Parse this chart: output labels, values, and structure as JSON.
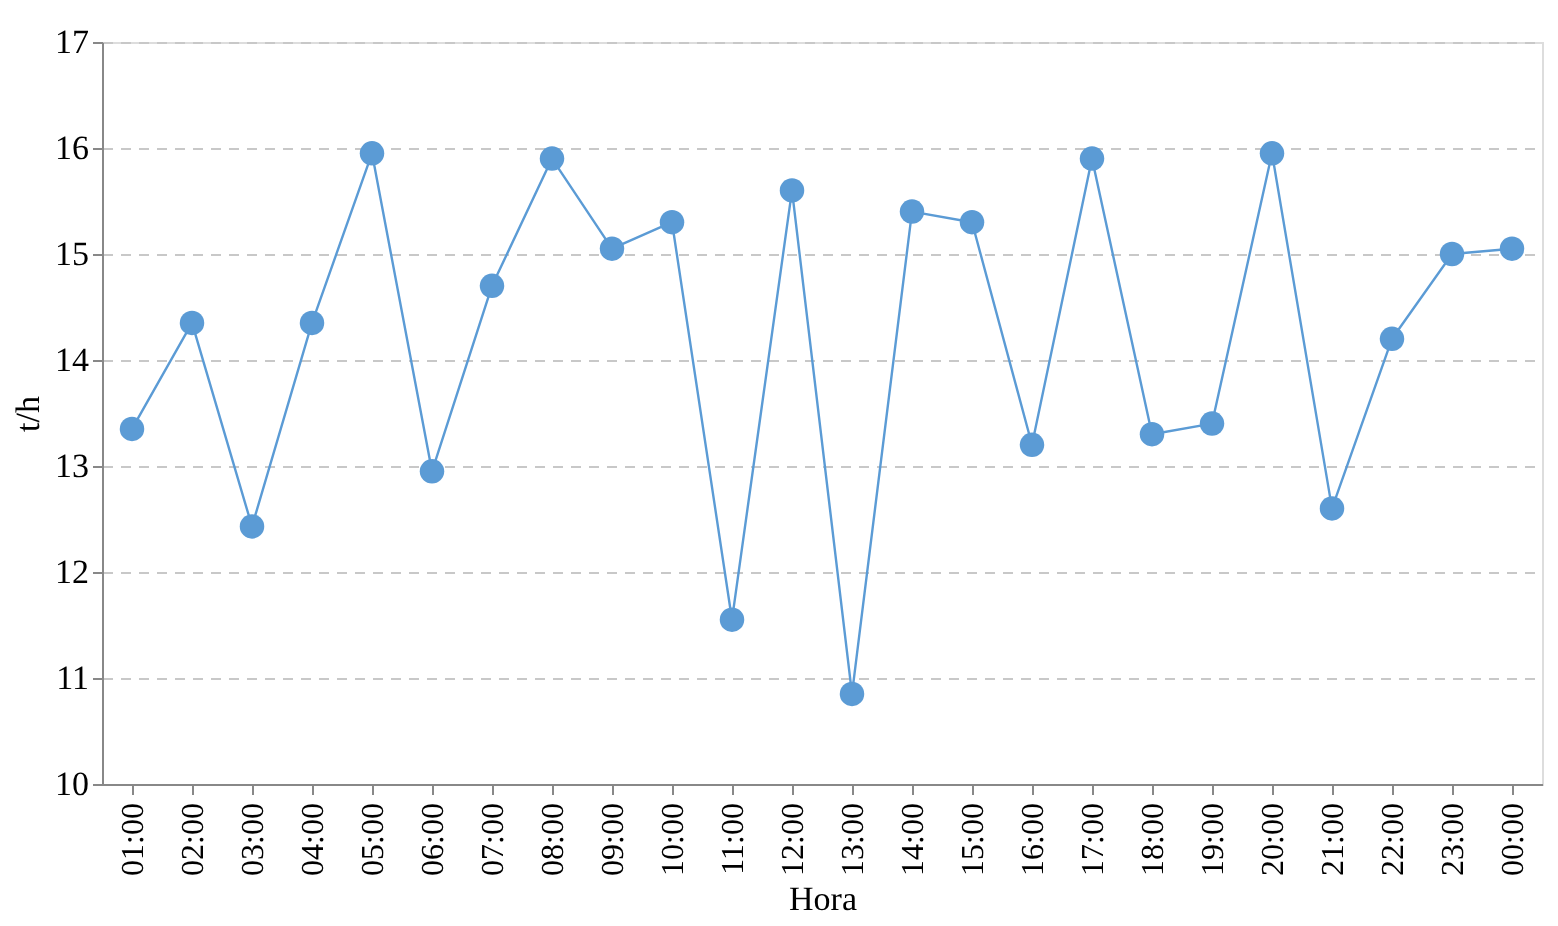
{
  "chart_data": {
    "type": "line",
    "xlabel": "Hora",
    "ylabel": "t/h",
    "categories": [
      "01:00",
      "02:00",
      "03:00",
      "04:00",
      "05:00",
      "06:00",
      "07:00",
      "08:00",
      "09:00",
      "10:00",
      "11:00",
      "12:00",
      "13:00",
      "14:00",
      "15:00",
      "16:00",
      "17:00",
      "18:00",
      "19:00",
      "20:00",
      "21:00",
      "22:00",
      "23:00",
      "00:00"
    ],
    "series": [
      {
        "color": "#5b9bd5",
        "values": [
          13.35,
          14.35,
          12.43,
          14.35,
          15.95,
          12.95,
          14.7,
          15.9,
          15.05,
          15.3,
          11.55,
          15.6,
          10.85,
          15.4,
          15.3,
          13.2,
          15.9,
          13.3,
          13.4,
          15.95,
          12.6,
          14.2,
          15.0,
          15.05
        ]
      }
    ],
    "ylim": [
      10,
      17
    ],
    "yticks": [
      10,
      11,
      12,
      13,
      14,
      15,
      16,
      17
    ],
    "grid": "y",
    "marker": "circle",
    "line_style": "solid"
  }
}
